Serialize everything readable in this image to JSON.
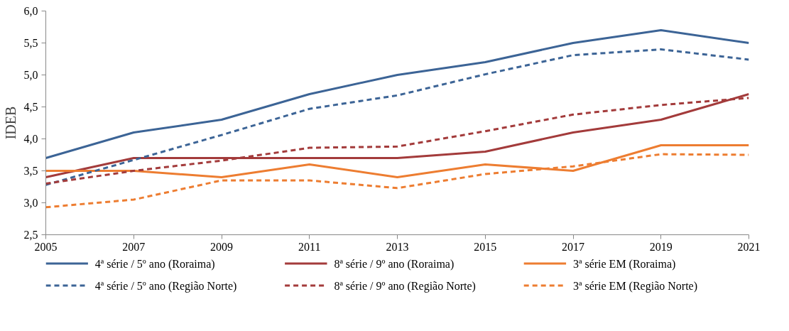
{
  "chart_data": {
    "type": "line",
    "ylabel": "IDEB",
    "x": [
      2005,
      2007,
      2009,
      2011,
      2013,
      2015,
      2017,
      2019,
      2021
    ],
    "xlim": [
      2005,
      2021
    ],
    "xticks": [
      2005,
      2007,
      2009,
      2011,
      2013,
      2015,
      2017,
      2019,
      2021
    ],
    "ylim": [
      2.5,
      6.0
    ],
    "yticks": [
      {
        "value": 2.5,
        "label": "2,5"
      },
      {
        "value": 3.0,
        "label": "3,0"
      },
      {
        "value": 3.5,
        "label": "3,5"
      },
      {
        "value": 4.0,
        "label": "4,0"
      },
      {
        "value": 4.5,
        "label": "4,5"
      },
      {
        "value": 5.0,
        "label": "5,0"
      },
      {
        "value": 5.5,
        "label": "5,5"
      },
      {
        "value": 6.0,
        "label": "6,0"
      }
    ],
    "grid": false,
    "legend": "bottom",
    "marker": "none",
    "series": [
      {
        "name": "4ª série / 5º ano (Roraima)",
        "color": "#3c6496",
        "line_style": "solid",
        "values": [
          3.7,
          4.1,
          4.3,
          4.7,
          5.0,
          5.2,
          5.5,
          5.7,
          5.5
        ]
      },
      {
        "name": "8ª série / 9º ano (Roraima)",
        "color": "#a33b3b",
        "line_style": "solid",
        "values": [
          3.4,
          3.7,
          3.7,
          3.7,
          3.7,
          3.8,
          4.1,
          4.3,
          4.7
        ]
      },
      {
        "name": "3ª série EM (Roraima)",
        "color": "#ed7d31",
        "line_style": "solid",
        "values": [
          3.5,
          3.5,
          3.4,
          3.6,
          3.4,
          3.6,
          3.5,
          3.9,
          3.9
        ]
      },
      {
        "name": "4ª série / 5º ano (Região Norte)",
        "color": "#3c6496",
        "line_style": "dashed",
        "values": [
          3.28,
          3.67,
          4.06,
          4.47,
          4.68,
          5.01,
          5.31,
          5.4,
          5.24
        ]
      },
      {
        "name": "8ª série / 9º ano (Região Norte)",
        "color": "#a33b3b",
        "line_style": "dashed",
        "values": [
          3.3,
          3.5,
          3.66,
          3.86,
          3.88,
          4.12,
          4.38,
          4.53,
          4.64
        ]
      },
      {
        "name": "3ª série EM (Região Norte)",
        "color": "#ed7d31",
        "line_style": "dashed",
        "values": [
          2.93,
          3.05,
          3.35,
          3.35,
          3.23,
          3.45,
          3.57,
          3.76,
          3.75
        ]
      }
    ]
  }
}
